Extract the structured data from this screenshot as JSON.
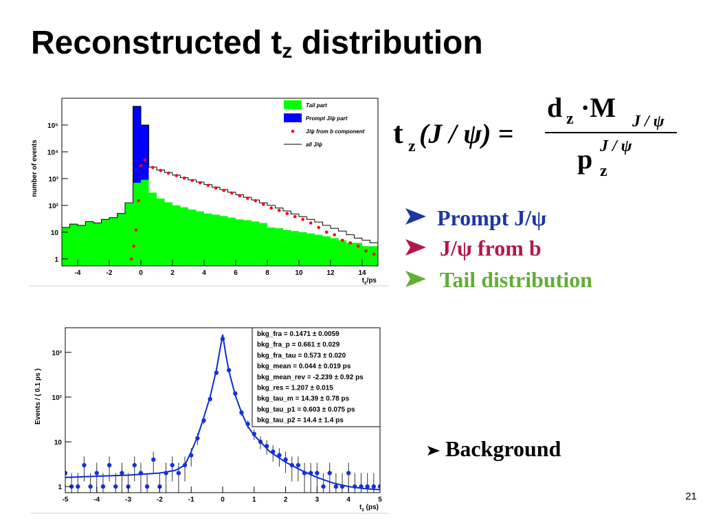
{
  "title": [
    "Reconstructed t",
    "z",
    " distribution"
  ],
  "formula": {
    "lhs": "t",
    "lhs_sub": "z",
    "lhs_rest": "(J / ψ) =",
    "num": "d",
    "num_sub": "z",
    "num_rest": "·M",
    "num_index": "J / ψ",
    "den": "p",
    "den_sup": "J / ψ",
    "den_sub": "z"
  },
  "bullets": [
    {
      "text": "Prompt J/ψ",
      "color": "#1c36a8"
    },
    {
      "text": "J/ψ from b",
      "color": "#b3174b"
    },
    {
      "text": "Tail distribution",
      "color": "#62ad37"
    },
    {
      "text": "Background",
      "color": "#000000"
    }
  ],
  "page_number": "21",
  "chart_data": [
    {
      "type": "histogram",
      "ylabel": "number of events",
      "xlabel": [
        "t",
        "z",
        "/ps"
      ],
      "bins": [
        -5,
        -4.5,
        -4,
        -3.5,
        -3,
        -2.5,
        -2,
        -1.5,
        -1,
        -0.5,
        0,
        0.5,
        1,
        1.5,
        2,
        2.5,
        3,
        3.5,
        4,
        4.5,
        5,
        5.5,
        6,
        6.5,
        7,
        7.5,
        8,
        8.5,
        9,
        9.5,
        10,
        10.5,
        11,
        11.5,
        12,
        12.5,
        13,
        13.5,
        14,
        14.5,
        15
      ],
      "series": [
        {
          "name": "Tail part",
          "color": "#00ff00",
          "style": "filled",
          "values": [
            15,
            20,
            18,
            25,
            22,
            30,
            35,
            50,
            120,
            700,
            900,
            300,
            180,
            130,
            100,
            85,
            70,
            60,
            50,
            45,
            40,
            35,
            30,
            28,
            25,
            22,
            15,
            14,
            12,
            11,
            10,
            9,
            8,
            7,
            6,
            5,
            4,
            4,
            3,
            3
          ]
        },
        {
          "name": "Prompt J/ψ part",
          "color": "#0000ff",
          "style": "filled",
          "values": [
            0,
            0,
            0,
            0,
            0,
            0,
            0,
            0,
            0,
            500000,
            100000,
            0,
            0,
            0,
            0,
            0,
            0,
            0,
            0,
            0,
            0,
            0,
            0,
            0,
            0,
            0,
            0,
            0,
            0,
            0,
            0,
            0,
            0,
            0,
            0,
            0,
            0,
            0,
            0,
            0
          ]
        },
        {
          "name": "all J/ψ",
          "color": "#000000",
          "style": "step",
          "values": [
            15,
            20,
            18,
            25,
            22,
            30,
            35,
            50,
            125,
            500000,
            100000,
            2700,
            2100,
            1700,
            1350,
            1100,
            900,
            740,
            600,
            480,
            390,
            310,
            250,
            200,
            160,
            125,
            100,
            80,
            62,
            48,
            38,
            30,
            24,
            18,
            14,
            11,
            8,
            6,
            5,
            4
          ]
        }
      ],
      "points": {
        "name": "J/ψ from b component",
        "color": "#ff0000",
        "x": [
          -0.6,
          -0.45,
          -0.3,
          -0.15,
          0,
          0.25,
          0.75,
          1.25,
          1.75,
          2.25,
          2.75,
          3.25,
          3.75,
          4.25,
          4.75,
          5.25,
          5.75,
          6.25,
          6.75,
          7.25,
          7.75,
          8.25,
          8.75,
          9.25,
          9.75,
          10.25,
          10.75,
          11.25,
          11.75,
          12.25,
          12.75,
          13.25,
          13.75,
          14.25,
          14.75
        ],
        "values": [
          1,
          3,
          12,
          150,
          3000,
          5000,
          2600,
          2000,
          1600,
          1300,
          1050,
          850,
          700,
          560,
          450,
          360,
          290,
          230,
          185,
          150,
          110,
          80,
          65,
          50,
          38,
          30,
          22,
          15,
          10,
          8,
          5,
          4,
          3,
          2,
          1.5
        ]
      },
      "xlim": [
        -5,
        15
      ],
      "xticks": [
        -4,
        -2,
        0,
        2,
        4,
        6,
        8,
        10,
        12,
        14
      ],
      "ylim": [
        0.55,
        1000000
      ],
      "log_y": true,
      "yticks": [
        1,
        10,
        {
          "value": 100,
          "label": "10²"
        },
        {
          "value": 1000,
          "label": "10³"
        },
        {
          "value": 10000,
          "label": "10⁴"
        },
        {
          "value": 100000,
          "label": "10⁵"
        }
      ]
    },
    {
      "type": "scatter",
      "ylabel": "Events / ( 0.1 ps )",
      "xlabel": [
        "t",
        "z",
        " (ps)"
      ],
      "color": "#1530e0",
      "x": [
        -5,
        -4.8,
        -4.6,
        -4.4,
        -4.2,
        -4,
        -3.8,
        -3.6,
        -3.4,
        -3.2,
        -3,
        -2.8,
        -2.6,
        -2.4,
        -2.2,
        -2,
        -1.8,
        -1.6,
        -1.4,
        -1.2,
        -1,
        -0.8,
        -0.6,
        -0.4,
        -0.2,
        0,
        0.2,
        0.4,
        0.6,
        0.8,
        1,
        1.2,
        1.4,
        1.6,
        1.8,
        2,
        2.2,
        2.4,
        2.6,
        2.8,
        3,
        3.2,
        3.4,
        3.6,
        3.8,
        4,
        4.2,
        4.4,
        4.6,
        4.8,
        5
      ],
      "values": [
        2,
        1,
        1,
        3,
        1,
        2,
        1,
        3,
        1,
        2,
        1,
        3,
        2,
        1,
        4,
        1,
        2,
        3,
        2,
        3,
        5,
        12,
        30,
        90,
        350,
        2000,
        400,
        120,
        45,
        25,
        15,
        10,
        8,
        6,
        5,
        4,
        3,
        3,
        2,
        2,
        2,
        1,
        2,
        1,
        1,
        2,
        1,
        1,
        1,
        1,
        1
      ],
      "errors": [
        1.4,
        1,
        1,
        1.7,
        1,
        1.4,
        1,
        1.7,
        1,
        1.4,
        1,
        1.7,
        1.4,
        1,
        2,
        1,
        1.4,
        1.7,
        1.4,
        1.7,
        2.2,
        3.5,
        5.5,
        9.5,
        19,
        45,
        20,
        11,
        6.7,
        5,
        3.9,
        3.2,
        2.8,
        2.4,
        2.2,
        2,
        1.7,
        1.7,
        1.4,
        1.4,
        1.4,
        1,
        1.4,
        1,
        1,
        1.4,
        1,
        1,
        1,
        1,
        1
      ],
      "fit": {
        "color": "#0a2bd6",
        "x": [
          -5,
          -4,
          -3,
          -2,
          -1.5,
          -1.2,
          -1,
          -0.8,
          -0.6,
          -0.4,
          -0.2,
          -0.1,
          0,
          0.1,
          0.2,
          0.4,
          0.6,
          0.8,
          1,
          1.5,
          2,
          2.5,
          3,
          3.5,
          4,
          4.5,
          5
        ],
        "values": [
          1.6,
          1.7,
          1.8,
          2.0,
          2.3,
          3,
          6,
          13,
          35,
          100,
          400,
          1000,
          2500,
          900,
          380,
          110,
          45,
          22,
          14,
          6,
          3.5,
          2.3,
          1.6,
          1.2,
          1.0,
          0.9,
          0.85
        ]
      },
      "stats": [
        "bkg_fra = 0.1471 ± 0.0059",
        "bkg_fra_p = 0.661 ± 0.029",
        "bkg_fra_tau = 0.573 ± 0.020",
        "bkg_mean = 0.044 ± 0.019 ps",
        "bkg_mean_rev = -2.239 ± 0.92 ps",
        "bkg_res = 1.207 ± 0.015",
        "bkg_tau_m = 14.39 ± 0.78 ps",
        "bkg_tau_p1 = 0.603 ± 0.075 ps",
        "bkg_tau_p2 = 14.4 ± 1.4 ps"
      ],
      "xlim": [
        -5,
        5
      ],
      "xticks": [
        -5,
        -4,
        -3,
        -2,
        -1,
        0,
        1,
        2,
        3,
        4,
        5
      ],
      "ylim": [
        0.73,
        3550
      ],
      "log_y": true,
      "yticks": [
        1,
        10,
        {
          "value": 100,
          "label": "10²"
        },
        {
          "value": 1000,
          "label": "10³"
        }
      ]
    }
  ]
}
